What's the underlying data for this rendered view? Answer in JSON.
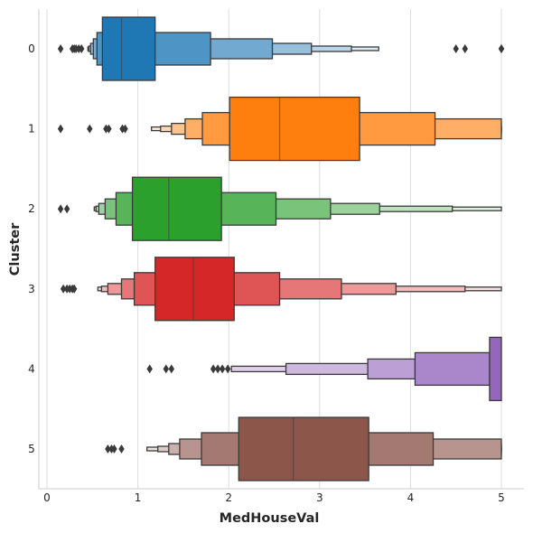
{
  "chart_data": {
    "type": "boxen",
    "xlabel": "MedHouseVal",
    "ylabel": "Cluster",
    "xlim": [
      -0.05,
      5.25
    ],
    "xticks": [
      0,
      1,
      2,
      3,
      4,
      5
    ],
    "grid": "vertical",
    "categories": [
      "0",
      "1",
      "2",
      "3",
      "4",
      "5"
    ],
    "series": [
      {
        "category": "0",
        "color": "#1f77b4",
        "median": 0.82,
        "boxes": [
          [
            0.61,
            1.19
          ],
          [
            0.55,
            1.8
          ],
          [
            0.51,
            2.48
          ],
          [
            0.48,
            2.91
          ],
          [
            0.46,
            3.35
          ],
          [
            0.45,
            3.65
          ]
        ],
        "outliers": [
          0.15,
          0.28,
          0.3,
          0.32,
          0.35,
          0.38,
          4.5,
          4.6,
          5.0,
          5.0
        ]
      },
      {
        "category": "1",
        "color": "#ff7f0e",
        "median": 2.56,
        "boxes": [
          [
            2.01,
            3.44
          ],
          [
            1.71,
            4.27
          ],
          [
            1.52,
            5.0
          ],
          [
            1.37,
            5.0
          ],
          [
            1.25,
            5.0
          ],
          [
            1.15,
            5.0
          ]
        ],
        "outliers": [
          0.15,
          0.47,
          0.65,
          0.68,
          0.83,
          0.86
        ]
      },
      {
        "category": "2",
        "color": "#2ca02c",
        "median": 1.34,
        "boxes": [
          [
            0.94,
            1.92
          ],
          [
            0.76,
            2.52
          ],
          [
            0.64,
            3.12
          ],
          [
            0.57,
            3.66
          ],
          [
            0.54,
            4.46
          ],
          [
            0.52,
            5.0
          ]
        ],
        "outliers": [
          0.15,
          0.22
        ]
      },
      {
        "category": "3",
        "color": "#d62728",
        "median": 1.61,
        "boxes": [
          [
            1.19,
            2.06
          ],
          [
            0.96,
            2.56
          ],
          [
            0.82,
            3.24
          ],
          [
            0.67,
            3.84
          ],
          [
            0.6,
            4.6
          ],
          [
            0.56,
            5.0
          ]
        ],
        "outliers": [
          0.18,
          0.22,
          0.25,
          0.28,
          0.3
        ]
      },
      {
        "category": "4",
        "color": "#9467bd",
        "median": null,
        "boxes": [
          [
            4.87,
            5.0
          ],
          [
            4.05,
            4.87
          ],
          [
            3.53,
            4.05
          ],
          [
            2.63,
            3.53
          ],
          [
            2.03,
            2.63
          ]
        ],
        "outliers": [
          1.13,
          1.31,
          1.37,
          1.83,
          1.88,
          1.93,
          1.99
        ]
      },
      {
        "category": "5",
        "color": "#8c564b",
        "median": 2.71,
        "boxes": [
          [
            2.11,
            3.54
          ],
          [
            1.7,
            4.25
          ],
          [
            1.46,
            5.0
          ],
          [
            1.34,
            5.0
          ],
          [
            1.22,
            5.0
          ],
          [
            1.1,
            5.0
          ]
        ],
        "outliers": [
          0.67,
          0.71,
          0.74,
          0.82
        ]
      }
    ]
  }
}
